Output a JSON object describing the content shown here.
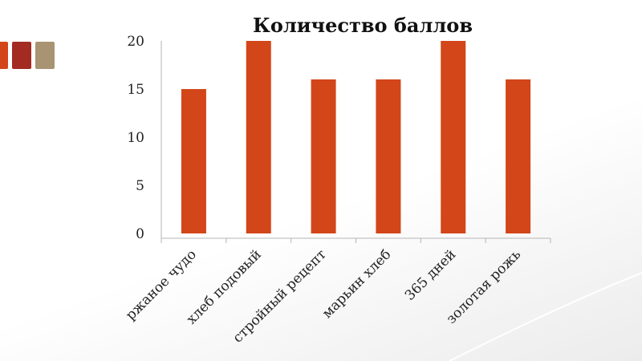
{
  "colors": {
    "bar": "#d24619",
    "swatch_1": "#d24619",
    "swatch_2": "#a32b22",
    "swatch_3": "#a89473"
  },
  "chart_data": {
    "type": "bar",
    "title": "Количество баллов",
    "categories": [
      "ржаное чудо",
      "хлеб подовый",
      "стройный рецепт",
      "марьин хлеб",
      "365 дней",
      "золотая рожь"
    ],
    "values": [
      15,
      20,
      16,
      16,
      20,
      16
    ],
    "ylim": [
      0,
      20
    ],
    "yticks": [
      "0",
      "5",
      "10",
      "15",
      "20"
    ],
    "xlabel": "",
    "ylabel": "",
    "grid": false,
    "legend": "none"
  }
}
